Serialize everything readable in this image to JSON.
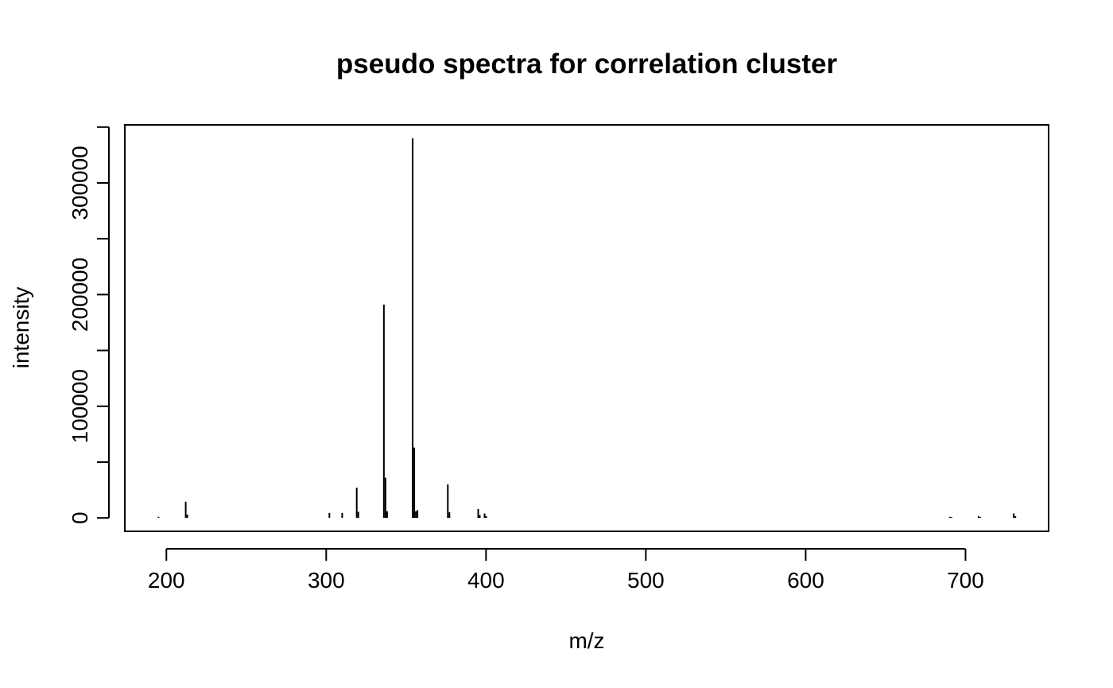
{
  "chart_data": {
    "type": "bar",
    "title": "pseudo spectra for correlation cluster",
    "xlabel": "m/z",
    "ylabel": "intensity",
    "xlim": [
      174,
      752
    ],
    "ylim": [
      -12000,
      352000
    ],
    "x_ticks": [
      200,
      300,
      400,
      500,
      600,
      700
    ],
    "x_tick_labels": [
      "200",
      "300",
      "400",
      "500",
      "600",
      "700"
    ],
    "y_ticks": [
      0,
      50000,
      100000,
      150000,
      200000,
      250000,
      300000,
      350000
    ],
    "y_tick_labels": [
      "0",
      "",
      "100000",
      "",
      "200000",
      "",
      "300000",
      ""
    ],
    "grid": false,
    "legend": "none",
    "series": [
      {
        "x": [
          195.1,
          212.1,
          213.1,
          302.0,
          310.0,
          319.1,
          320.1,
          336.1,
          337.1,
          338.1,
          354.1,
          355.1,
          356.1,
          357.1,
          376.1,
          377.1,
          395.1,
          396.1,
          399.1,
          400.1,
          690.2,
          691.2,
          708.2,
          709.2,
          730.2,
          731.2
        ],
        "values": [
          1000,
          14500,
          3000,
          4500,
          4500,
          27000,
          5500,
          191000,
          36000,
          6000,
          340000,
          63000,
          6000,
          7000,
          30000,
          5000,
          8000,
          2500,
          4000,
          1500,
          1000,
          700,
          1500,
          700,
          4000,
          1500
        ]
      }
    ]
  }
}
